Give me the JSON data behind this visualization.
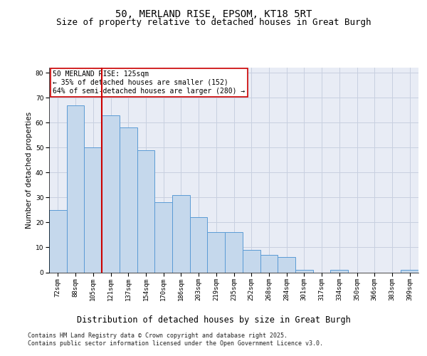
{
  "title": "50, MERLAND RISE, EPSOM, KT18 5RT",
  "subtitle": "Size of property relative to detached houses in Great Burgh",
  "xlabel": "Distribution of detached houses by size in Great Burgh",
  "ylabel": "Number of detached properties",
  "categories": [
    "72sqm",
    "88sqm",
    "105sqm",
    "121sqm",
    "137sqm",
    "154sqm",
    "170sqm",
    "186sqm",
    "203sqm",
    "219sqm",
    "235sqm",
    "252sqm",
    "268sqm",
    "284sqm",
    "301sqm",
    "317sqm",
    "334sqm",
    "350sqm",
    "366sqm",
    "383sqm",
    "399sqm"
  ],
  "values": [
    25,
    67,
    50,
    63,
    58,
    49,
    28,
    31,
    22,
    16,
    16,
    9,
    7,
    6,
    1,
    0,
    1,
    0,
    0,
    0,
    1
  ],
  "bar_color": "#c5d8ec",
  "bar_edge_color": "#5b9bd5",
  "bar_linewidth": 0.7,
  "vline_color": "#cc0000",
  "annotation_text": "50 MERLAND RISE: 125sqm\n← 35% of detached houses are smaller (152)\n64% of semi-detached houses are larger (280) →",
  "annotation_box_facecolor": "#ffffff",
  "annotation_box_edgecolor": "#cc0000",
  "ylim": [
    0,
    82
  ],
  "yticks": [
    0,
    10,
    20,
    30,
    40,
    50,
    60,
    70,
    80
  ],
  "grid_color": "#c8d0e0",
  "background_color": "#e8ecf5",
  "footer_text": "Contains HM Land Registry data © Crown copyright and database right 2025.\nContains public sector information licensed under the Open Government Licence v3.0.",
  "title_fontsize": 10,
  "subtitle_fontsize": 9,
  "xlabel_fontsize": 8.5,
  "ylabel_fontsize": 7.5,
  "tick_fontsize": 6.5,
  "annotation_fontsize": 7,
  "footer_fontsize": 6
}
